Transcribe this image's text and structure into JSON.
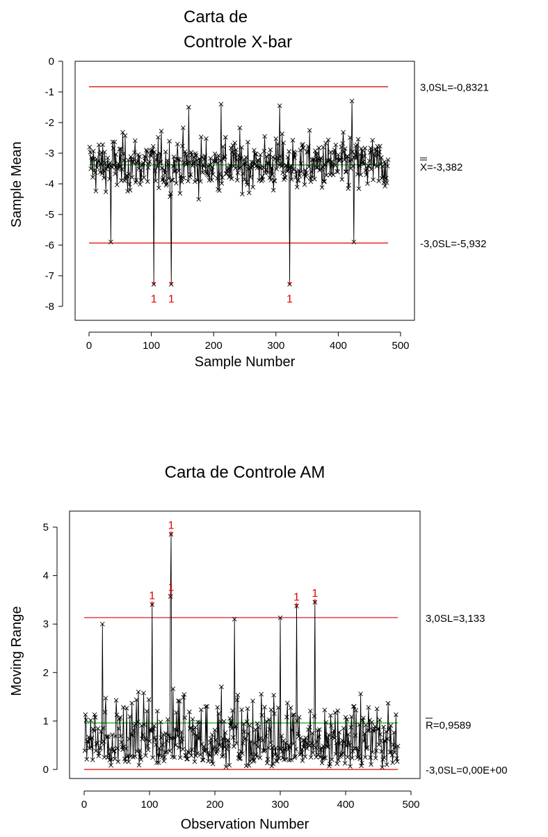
{
  "chart_data": [
    {
      "type": "line",
      "title_lines": [
        "Carta de",
        "Controle X-bar"
      ],
      "xlabel": "Sample Number",
      "ylabel": "Sample Mean",
      "xlim": [
        0,
        500
      ],
      "ylim": [
        -8,
        0
      ],
      "x_ticks": [
        0,
        100,
        200,
        300,
        400,
        500
      ],
      "y_ticks": [
        0,
        -1,
        -2,
        -3,
        -4,
        -5,
        -6,
        -7,
        -8
      ],
      "n_points": 480,
      "series_color": "#000000",
      "control_lines": [
        {
          "value": -0.8321,
          "label": "3,0SL=-0,8321",
          "color": "#e00000"
        },
        {
          "value": -3.382,
          "label": "X=-3,382",
          "color": "#00b000"
        },
        {
          "value": -5.932,
          "label": "-3,0SL=-5,932",
          "color": "#e00000"
        }
      ],
      "out_of_control": [
        {
          "x": 104,
          "y": -7.28,
          "flag": "1"
        },
        {
          "x": 132,
          "y": -7.28,
          "flag": "1"
        },
        {
          "x": 322,
          "y": -7.28,
          "flag": "1"
        }
      ],
      "extremes": [
        {
          "x": 35,
          "y": -5.9
        },
        {
          "x": 160,
          "y": -1.5
        },
        {
          "x": 212,
          "y": -1.4
        },
        {
          "x": 306,
          "y": -1.45
        },
        {
          "x": 422,
          "y": -1.3
        },
        {
          "x": 425,
          "y": -5.9
        }
      ]
    },
    {
      "type": "line",
      "title": "Carta de Controle AM",
      "xlabel": "Observation Number",
      "ylabel": "Moving Range",
      "xlim": [
        0,
        500
      ],
      "ylim": [
        -0.3,
        5.3
      ],
      "x_ticks": [
        0,
        100,
        200,
        300,
        400,
        500
      ],
      "y_ticks": [
        0,
        1,
        2,
        3,
        4,
        5
      ],
      "n_points": 480,
      "series_color": "#000000",
      "control_lines": [
        {
          "value": 3.133,
          "label": "3,0SL=3,133",
          "color": "#e00000"
        },
        {
          "value": 0.9589,
          "label": "R=0,9589",
          "color": "#00b000"
        },
        {
          "value": 0.0,
          "label": "-3,0SL=0,00E+00",
          "color": "#e00000"
        }
      ],
      "out_of_control": [
        {
          "x": 104,
          "y": 3.4,
          "flag": "1"
        },
        {
          "x": 133,
          "y": 4.85,
          "flag": "1"
        },
        {
          "x": 133,
          "y": 3.57,
          "flag": "1"
        },
        {
          "x": 325,
          "y": 3.37,
          "flag": "1"
        },
        {
          "x": 353,
          "y": 3.45,
          "flag": "1"
        }
      ],
      "extremes": [
        {
          "x": 28,
          "y": 3.0
        },
        {
          "x": 230,
          "y": 3.1
        },
        {
          "x": 300,
          "y": 3.13
        }
      ]
    }
  ],
  "colors": {
    "limit": "#e00000",
    "center": "#00b000",
    "data": "#000000"
  }
}
